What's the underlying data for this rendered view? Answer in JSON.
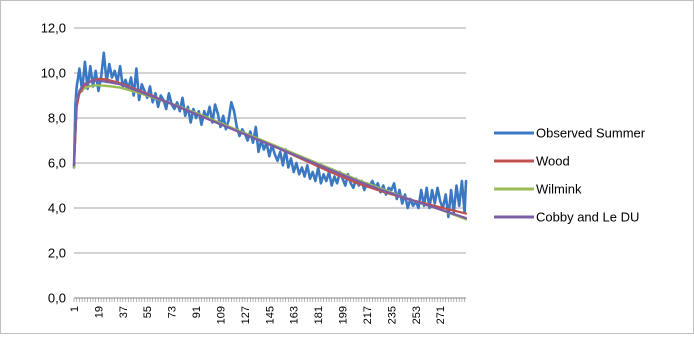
{
  "chart_data": {
    "type": "line",
    "title": "",
    "xlabel": "",
    "ylabel": "",
    "ylim": [
      0,
      12
    ],
    "y_ticks": [
      "0,0",
      "2,0",
      "4,0",
      "6,0",
      "8,0",
      "10,0",
      "12,0"
    ],
    "x_range": [
      1,
      290
    ],
    "x_ticks": [
      "1",
      "19",
      "37",
      "55",
      "73",
      "91",
      "109",
      "127",
      "145",
      "163",
      "181",
      "199",
      "217",
      "235",
      "253",
      "271"
    ],
    "x_tick_values": [
      1,
      19,
      37,
      55,
      73,
      91,
      109,
      127,
      145,
      163,
      181,
      199,
      217,
      235,
      253,
      271
    ],
    "grid": "horizontal",
    "legend_position": "right",
    "series": [
      {
        "name": "Observed  Summer",
        "color": "#3b78c3",
        "x": [
          1,
          2,
          3,
          4,
          5,
          7,
          9,
          11,
          13,
          15,
          17,
          19,
          21,
          23,
          25,
          27,
          29,
          31,
          33,
          35,
          37,
          39,
          41,
          43,
          45,
          47,
          49,
          51,
          53,
          55,
          57,
          59,
          61,
          63,
          65,
          67,
          69,
          71,
          73,
          75,
          77,
          79,
          81,
          83,
          85,
          87,
          89,
          91,
          93,
          95,
          97,
          99,
          101,
          103,
          105,
          107,
          109,
          111,
          113,
          115,
          117,
          119,
          121,
          123,
          125,
          127,
          129,
          131,
          133,
          135,
          137,
          139,
          141,
          143,
          145,
          147,
          149,
          151,
          153,
          155,
          157,
          159,
          161,
          163,
          165,
          167,
          169,
          171,
          173,
          175,
          177,
          179,
          181,
          183,
          185,
          187,
          189,
          191,
          193,
          195,
          197,
          199,
          201,
          203,
          205,
          207,
          209,
          211,
          213,
          215,
          217,
          219,
          221,
          223,
          225,
          227,
          229,
          231,
          233,
          235,
          237,
          239,
          241,
          243,
          245,
          247,
          249,
          251,
          253,
          255,
          257,
          259,
          261,
          263,
          265,
          267,
          269,
          271,
          273,
          275,
          277,
          279,
          281,
          283,
          285,
          287,
          289,
          290
        ],
        "values": [
          5.8,
          8.6,
          9.4,
          9.8,
          10.2,
          9.2,
          10.5,
          9.3,
          10.3,
          9.4,
          10.1,
          9.2,
          9.8,
          10.9,
          9.6,
          10.4,
          9.8,
          10.1,
          9.6,
          10.3,
          9.4,
          9.7,
          9.3,
          9.8,
          9.0,
          10.2,
          8.8,
          9.5,
          9.2,
          8.9,
          9.4,
          8.7,
          9.1,
          8.5,
          9.0,
          8.8,
          8.4,
          9.1,
          8.6,
          8.4,
          8.7,
          8.3,
          8.9,
          8.1,
          8.5,
          7.8,
          8.4,
          8.0,
          8.3,
          7.7,
          8.3,
          8.0,
          8.5,
          7.8,
          8.6,
          8.2,
          7.6,
          8.1,
          7.5,
          7.9,
          8.7,
          8.3,
          7.6,
          7.2,
          7.5,
          7.3,
          7.0,
          7.4,
          6.9,
          7.6,
          6.5,
          7.0,
          6.6,
          6.9,
          6.3,
          6.8,
          6.4,
          6.1,
          6.5,
          5.9,
          6.6,
          5.8,
          6.2,
          5.6,
          6.0,
          5.5,
          5.8,
          5.4,
          5.9,
          5.3,
          5.6,
          5.2,
          5.8,
          5.1,
          5.5,
          5.2,
          5.6,
          5.0,
          5.4,
          5.1,
          5.6,
          5.3,
          5.0,
          5.5,
          5.1,
          4.9,
          5.3,
          5.0,
          5.2,
          4.8,
          5.1,
          5.0,
          5.2,
          4.9,
          5.1,
          4.7,
          5.0,
          4.6,
          4.9,
          4.8,
          5.1,
          4.4,
          4.8,
          4.2,
          4.6,
          4.0,
          4.4,
          4.1,
          4.3,
          4.0,
          4.8,
          4.1,
          4.9,
          4.0,
          4.8,
          4.2,
          4.9,
          4.3,
          4.0,
          4.6,
          3.6,
          4.8,
          3.8,
          5.0,
          4.1,
          5.2,
          3.8,
          5.2
        ]
      },
      {
        "name": "Wood",
        "color": "#c0504d",
        "x": [
          1,
          3,
          5,
          8,
          12,
          16,
          20,
          26,
          35,
          50,
          70,
          90,
          110,
          130,
          150,
          170,
          190,
          210,
          230,
          250,
          270,
          290
        ],
        "values": [
          5.9,
          8.5,
          9.1,
          9.4,
          9.6,
          9.7,
          9.75,
          9.7,
          9.55,
          9.2,
          8.7,
          8.2,
          7.7,
          7.2,
          6.7,
          6.15,
          5.6,
          5.1,
          4.7,
          4.35,
          4.05,
          3.75
        ]
      },
      {
        "name": "Wilmink",
        "color": "#9bbb59",
        "x": [
          1,
          3,
          5,
          8,
          12,
          16,
          20,
          26,
          35,
          50,
          70,
          90,
          110,
          130,
          150,
          170,
          190,
          210,
          230,
          250,
          270,
          290
        ],
        "values": [
          5.8,
          8.8,
          9.1,
          9.3,
          9.4,
          9.45,
          9.45,
          9.42,
          9.35,
          9.1,
          8.7,
          8.25,
          7.75,
          7.25,
          6.75,
          6.25,
          5.75,
          5.25,
          4.8,
          4.35,
          3.95,
          3.5
        ]
      },
      {
        "name": "Cobby and Le DU",
        "color": "#7b5ea7",
        "x": [
          1,
          3,
          5,
          8,
          12,
          16,
          20,
          26,
          35,
          50,
          70,
          90,
          110,
          130,
          150,
          170,
          190,
          210,
          230,
          250,
          270,
          290
        ],
        "values": [
          5.9,
          8.7,
          9.2,
          9.5,
          9.6,
          9.65,
          9.65,
          9.6,
          9.5,
          9.15,
          8.7,
          8.2,
          7.7,
          7.2,
          6.7,
          6.2,
          5.7,
          5.2,
          4.75,
          4.35,
          3.95,
          3.55
        ]
      }
    ]
  }
}
